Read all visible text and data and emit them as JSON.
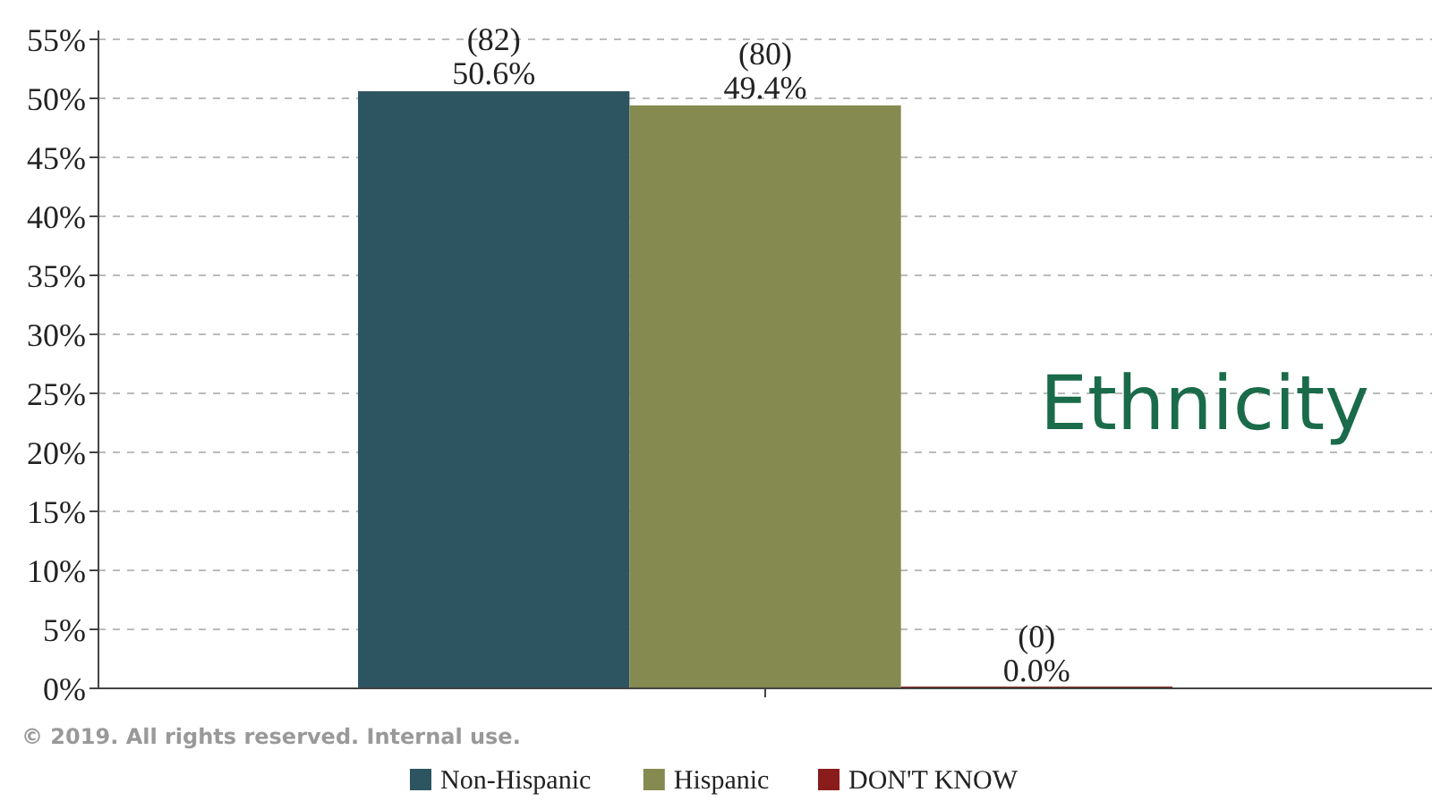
{
  "chart_data": {
    "type": "bar",
    "title": "Ethnicity",
    "categories": [
      null
    ],
    "series": [
      {
        "name": "Non-Hispanic",
        "color": "#2d5461",
        "values": [
          50.6
        ],
        "value_labels": [
          "(82)\n50.6%"
        ]
      },
      {
        "name": "Hispanic",
        "color": "#858a50",
        "values": [
          49.4
        ],
        "value_labels": [
          "(80)\n49.4%"
        ]
      },
      {
        "name": "DON'T KNOW",
        "color": "#8b1c1c",
        "values": [
          0
        ],
        "value_labels": [
          "(0)\n0.0%"
        ]
      }
    ],
    "ylim": [
      0,
      55
    ],
    "yticks": [
      {
        "value": 0,
        "label": "0%"
      },
      {
        "value": 5,
        "label": "5%"
      },
      {
        "value": 10,
        "label": "10%"
      },
      {
        "value": 15,
        "label": "15%"
      },
      {
        "value": 20,
        "label": "20%"
      },
      {
        "value": 25,
        "label": "25%"
      },
      {
        "value": 30,
        "label": "30%"
      },
      {
        "value": 35,
        "label": "35%"
      },
      {
        "value": 40,
        "label": "40%"
      },
      {
        "value": 45,
        "label": "45%"
      },
      {
        "value": 50,
        "label": "50%"
      },
      {
        "value": 55,
        "label": "55%"
      }
    ],
    "grid": "y",
    "legend": "bottom",
    "annotations": [
      "© 2019. All rights reserved. Internal use."
    ]
  }
}
